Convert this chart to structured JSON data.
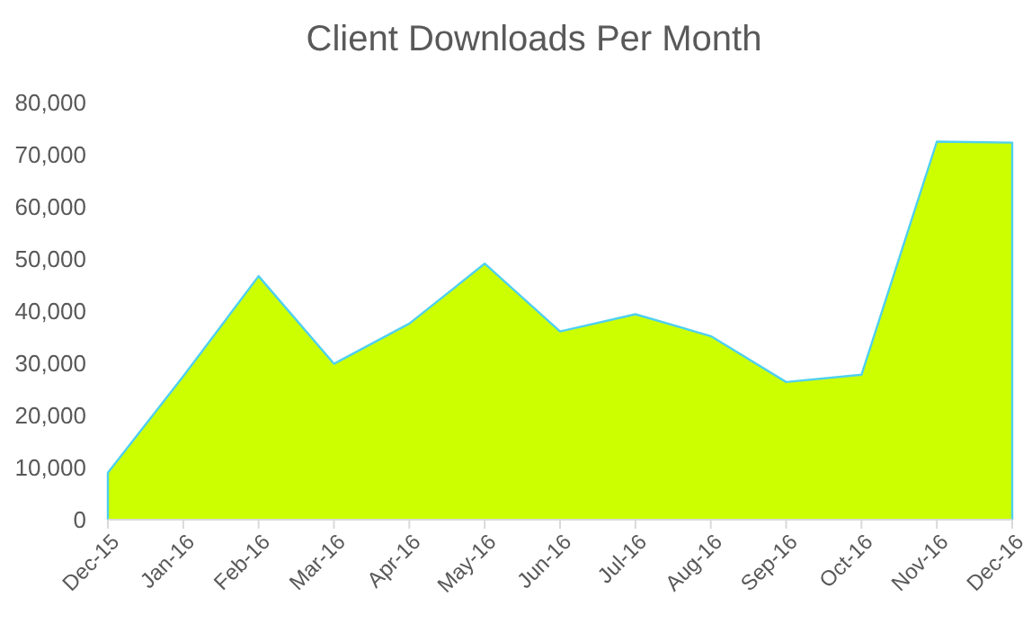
{
  "chart_data": {
    "type": "area",
    "title": "Client Downloads Per Month",
    "categories": [
      "Dec-15",
      "Jan-16",
      "Feb-16",
      "Mar-16",
      "Apr-16",
      "May-16",
      "Jun-16",
      "Jul-16",
      "Aug-16",
      "Sep-16",
      "Oct-16",
      "Nov-16",
      "Dec-16"
    ],
    "series": [
      {
        "color": "#ccff00",
        "values": [
          9000,
          27500,
          46700,
          29900,
          37600,
          49100,
          36100,
          39400,
          35200,
          26400,
          27800,
          72500,
          72300
        ]
      }
    ],
    "ylim": [
      0,
      80000
    ],
    "yticks": [
      {
        "value": 0,
        "label": "0"
      },
      {
        "value": 10000,
        "label": "10,000"
      },
      {
        "value": 20000,
        "label": "20,000"
      },
      {
        "value": 30000,
        "label": "30,000"
      },
      {
        "value": 40000,
        "label": "40,000"
      },
      {
        "value": 50000,
        "label": "50,000"
      },
      {
        "value": 60000,
        "label": "60,000"
      },
      {
        "value": 70000,
        "label": "70,000"
      },
      {
        "value": 80000,
        "label": "80,000"
      }
    ],
    "grid": false
  }
}
